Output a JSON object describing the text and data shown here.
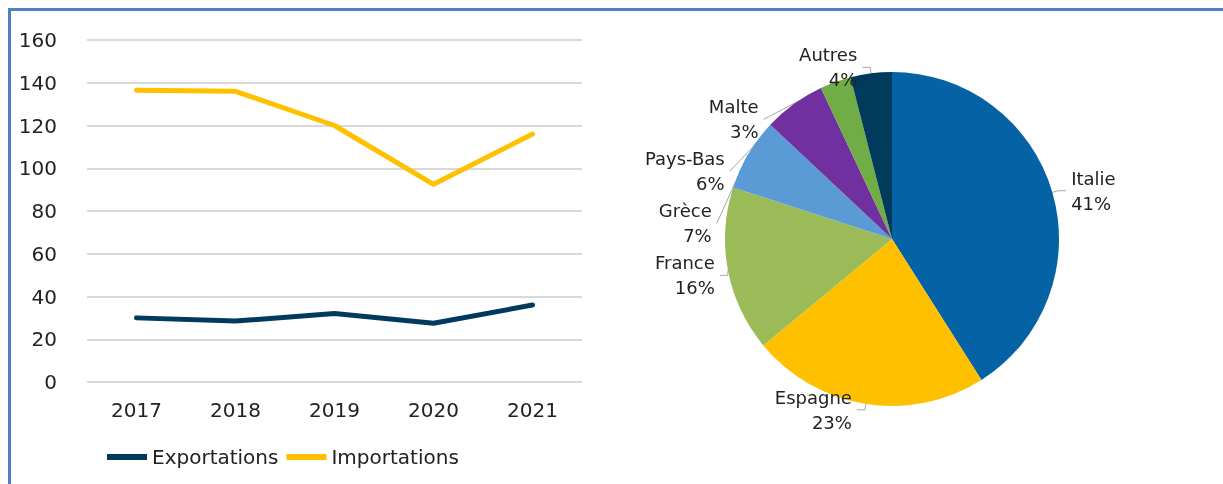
{
  "chart_data": [
    {
      "type": "line",
      "categories": [
        "2017",
        "2018",
        "2019",
        "2020",
        "2021"
      ],
      "series": [
        {
          "name": "Exportations",
          "color": "#003a5d",
          "values": [
            30,
            28.5,
            32,
            27.5,
            36
          ]
        },
        {
          "name": "Importations",
          "color": "#ffc000",
          "values": [
            136.5,
            136,
            120,
            92.5,
            116
          ]
        }
      ],
      "ylim": [
        0,
        160
      ],
      "yticks": [
        0,
        20,
        40,
        60,
        80,
        100,
        120,
        140,
        160
      ],
      "grid": "y",
      "legend": "bottom",
      "marker": "none",
      "line_style": "solid"
    },
    {
      "type": "pie",
      "categories": [
        "Italie",
        "Espagne",
        "France",
        "Grèce",
        "Pays-Bas",
        "Malte",
        "Autres"
      ],
      "values": [
        41,
        23,
        16,
        7,
        6,
        3,
        4
      ],
      "colors": [
        "#0563a5",
        "#ffc000",
        "#9bbb59",
        "#5b9bd5",
        "#7030a0",
        "#70ad47",
        "#003a5d"
      ],
      "value_labels": [
        "41%",
        "23%",
        "16%",
        "7%",
        "6%",
        "3%",
        "4%"
      ]
    }
  ]
}
